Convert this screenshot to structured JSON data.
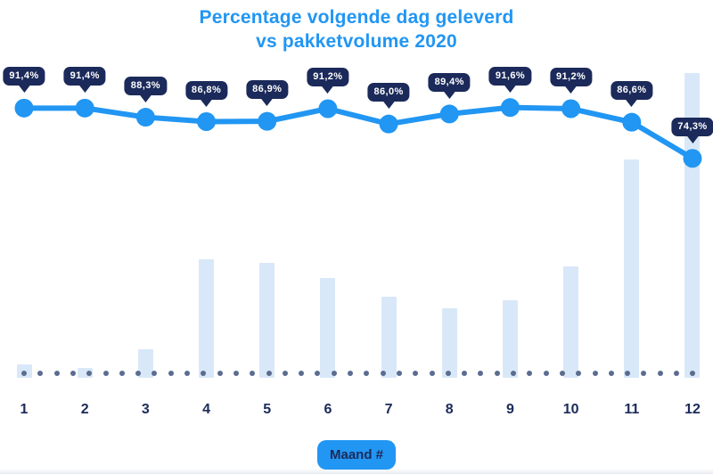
{
  "title": {
    "line1": "Percentage volgende dag geleverd",
    "line2": "vs pakketvolume 2020"
  },
  "x_axis": {
    "label_badge": "Maand #",
    "ticks": [
      "1",
      "2",
      "3",
      "4",
      "5",
      "6",
      "7",
      "8",
      "9",
      "10",
      "11",
      "12"
    ]
  },
  "chart_data": {
    "type": "combo",
    "categories": [
      "1",
      "2",
      "3",
      "4",
      "5",
      "6",
      "7",
      "8",
      "9",
      "10",
      "11",
      "12"
    ],
    "series": [
      {
        "name": "Percentage volgende dag geleverd",
        "type": "line",
        "unit": "%",
        "values": [
          91.4,
          91.4,
          88.3,
          86.8,
          86.9,
          91.2,
          86.0,
          89.4,
          91.6,
          91.2,
          86.6,
          74.3
        ],
        "point_labels": [
          "91,4%",
          "91,4%",
          "88,3%",
          "86,8%",
          "86,9%",
          "91,2%",
          "86,0%",
          "89,4%",
          "91,6%",
          "91,2%",
          "86,6%",
          "74,3%"
        ]
      },
      {
        "name": "Pakketvolume",
        "type": "bar",
        "unit": "relative (no value labels shown)",
        "values_percent_of_max": [
          4.4,
          3.2,
          9.4,
          38.9,
          37.7,
          32.7,
          26.6,
          22.8,
          25.4,
          36.5,
          71.6,
          100
        ]
      }
    ],
    "xlabel": "Maand #",
    "ylabel": "",
    "legend": "none",
    "grid": "none",
    "baseline_style": "dotted"
  },
  "colors": {
    "accent_blue": "#2196f3",
    "navy": "#1b2a5a",
    "bar_fill": "#d9e8f8",
    "baseline_dot": "#5b6c90",
    "badge_text": "#ffffff",
    "background": "#ffffff"
  }
}
